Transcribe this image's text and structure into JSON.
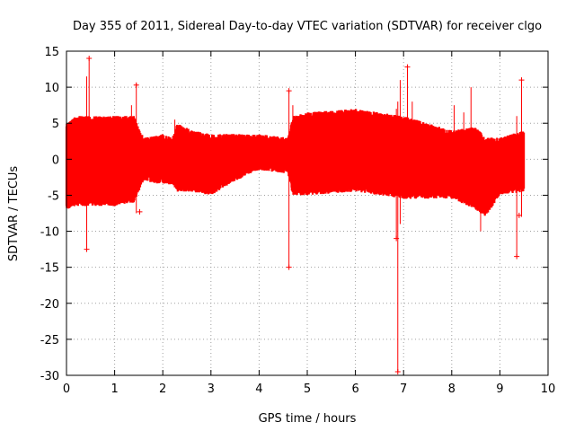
{
  "chart_data": {
    "type": "scatter",
    "title": "Day 355 of 2011, Sidereal Day-to-day VTEC variation (SDTVAR) for receiver clgo",
    "xlabel": "GPS time / hours",
    "ylabel": "SDTVAR / TECUs",
    "xlim": [
      0,
      10
    ],
    "ylim": [
      -30,
      15
    ],
    "xticks": [
      "0",
      "1",
      "2",
      "3",
      "4",
      "5",
      "6",
      "7",
      "8",
      "9",
      "10"
    ],
    "yticks": [
      "15",
      "10",
      "5",
      "0",
      "-5",
      "-10",
      "-15",
      "-20",
      "-25",
      "-30"
    ],
    "grid": true,
    "series_color": "#ff0000",
    "marker": "plus",
    "envelope": [
      {
        "t": 0.0,
        "lo": -7.0,
        "hi": 5.0
      },
      {
        "t": 0.2,
        "lo": -6.5,
        "hi": 6.0
      },
      {
        "t": 0.5,
        "lo": -6.5,
        "hi": 6.0
      },
      {
        "t": 1.0,
        "lo": -6.5,
        "hi": 6.0
      },
      {
        "t": 1.4,
        "lo": -6.0,
        "hi": 6.0
      },
      {
        "t": 1.6,
        "lo": -3.0,
        "hi": 3.0
      },
      {
        "t": 2.0,
        "lo": -3.5,
        "hi": 3.5
      },
      {
        "t": 2.2,
        "lo": -3.5,
        "hi": 3.0
      },
      {
        "t": 2.3,
        "lo": -4.5,
        "hi": 5.0
      },
      {
        "t": 2.6,
        "lo": -4.5,
        "hi": 4.0
      },
      {
        "t": 3.0,
        "lo": -5.0,
        "hi": 3.5
      },
      {
        "t": 3.5,
        "lo": -3.0,
        "hi": 3.5
      },
      {
        "t": 4.0,
        "lo": -1.5,
        "hi": 3.5
      },
      {
        "t": 4.6,
        "lo": -2.0,
        "hi": 3.0
      },
      {
        "t": 4.7,
        "lo": -5.0,
        "hi": 6.0
      },
      {
        "t": 5.0,
        "lo": -5.0,
        "hi": 6.5
      },
      {
        "t": 6.0,
        "lo": -4.5,
        "hi": 7.0
      },
      {
        "t": 7.0,
        "lo": -5.5,
        "hi": 6.0
      },
      {
        "t": 8.0,
        "lo": -5.5,
        "hi": 4.0
      },
      {
        "t": 8.5,
        "lo": -7.0,
        "hi": 4.5
      },
      {
        "t": 8.7,
        "lo": -8.0,
        "hi": 3.0
      },
      {
        "t": 9.0,
        "lo": -5.0,
        "hi": 3.0
      },
      {
        "t": 9.5,
        "lo": -4.5,
        "hi": 4.0
      }
    ],
    "spikes": [
      {
        "t": 0.42,
        "lo": -12.5,
        "hi": 11.5
      },
      {
        "t": 0.47,
        "lo": -5.0,
        "hi": 14.0
      },
      {
        "t": 1.35,
        "lo": -4.0,
        "hi": 7.5
      },
      {
        "t": 1.45,
        "lo": -7.5,
        "hi": 10.5
      },
      {
        "t": 2.25,
        "lo": -3.0,
        "hi": 5.5
      },
      {
        "t": 4.62,
        "lo": -15.0,
        "hi": 9.5
      },
      {
        "t": 4.7,
        "lo": -3.0,
        "hi": 7.5
      },
      {
        "t": 6.85,
        "lo": -11.0,
        "hi": 7.0
      },
      {
        "t": 6.88,
        "lo": -29.5,
        "hi": 8.0
      },
      {
        "t": 6.93,
        "lo": -9.0,
        "hi": 11.0
      },
      {
        "t": 7.08,
        "lo": -3.0,
        "hi": 12.5
      },
      {
        "t": 7.18,
        "lo": -2.0,
        "hi": 8.0
      },
      {
        "t": 8.05,
        "lo": -3.0,
        "hi": 7.5
      },
      {
        "t": 8.25,
        "lo": -2.0,
        "hi": 6.5
      },
      {
        "t": 8.4,
        "lo": -4.0,
        "hi": 10.0
      },
      {
        "t": 8.6,
        "lo": -10.0,
        "hi": 3.5
      },
      {
        "t": 8.85,
        "lo": -6.0,
        "hi": 2.0
      },
      {
        "t": 9.35,
        "lo": -13.5,
        "hi": 6.0
      },
      {
        "t": 9.45,
        "lo": -8.0,
        "hi": 11.0
      }
    ],
    "outliers": [
      {
        "t": 0.47,
        "v": 14.0
      },
      {
        "t": 0.42,
        "v": -12.5
      },
      {
        "t": 1.45,
        "v": 10.3
      },
      {
        "t": 1.52,
        "v": -7.3
      },
      {
        "t": 4.62,
        "v": 9.5
      },
      {
        "t": 4.62,
        "v": -15.0
      },
      {
        "t": 6.88,
        "v": -29.5
      },
      {
        "t": 6.85,
        "v": -11.0
      },
      {
        "t": 7.08,
        "v": 12.8
      },
      {
        "t": 9.35,
        "v": -13.5
      },
      {
        "t": 9.45,
        "v": 11.0
      },
      {
        "t": 9.4,
        "v": -7.8
      }
    ]
  }
}
